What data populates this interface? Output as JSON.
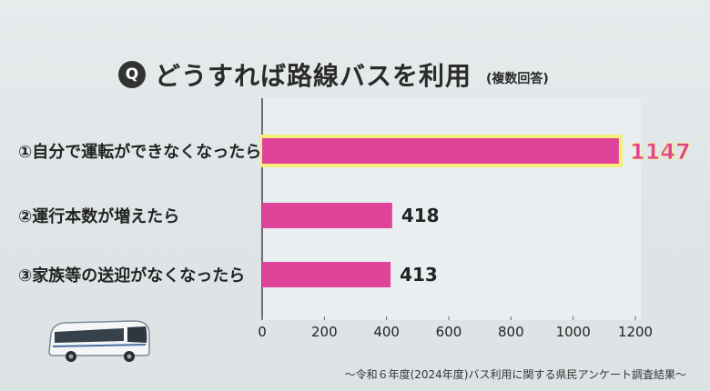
{
  "header": {
    "q_badge": "Q",
    "title": "どうすれば路線バスを利用",
    "subtitle": "(複数回答)"
  },
  "footer": "〜令和６年度(2024年度)バス利用に関する県民アンケート調査結果〜",
  "colors": {
    "bar": "#e0439a",
    "highlight_outline": "#f6f07a",
    "highlight_value": "#e0439a"
  },
  "chart_data": {
    "type": "bar",
    "orientation": "horizontal",
    "categories": [
      "①自分で運転ができなくなったら",
      "②運行本数が増えたら",
      "③家族等の送迎がなくなったら"
    ],
    "values": [
      1147,
      418,
      413
    ],
    "value_labels": [
      "1147",
      "418",
      "413"
    ],
    "xlim": [
      0,
      1200
    ],
    "xticks": [
      "0",
      "200",
      "400",
      "600",
      "800",
      "1000",
      "1200"
    ],
    "highlight_index": 0
  }
}
